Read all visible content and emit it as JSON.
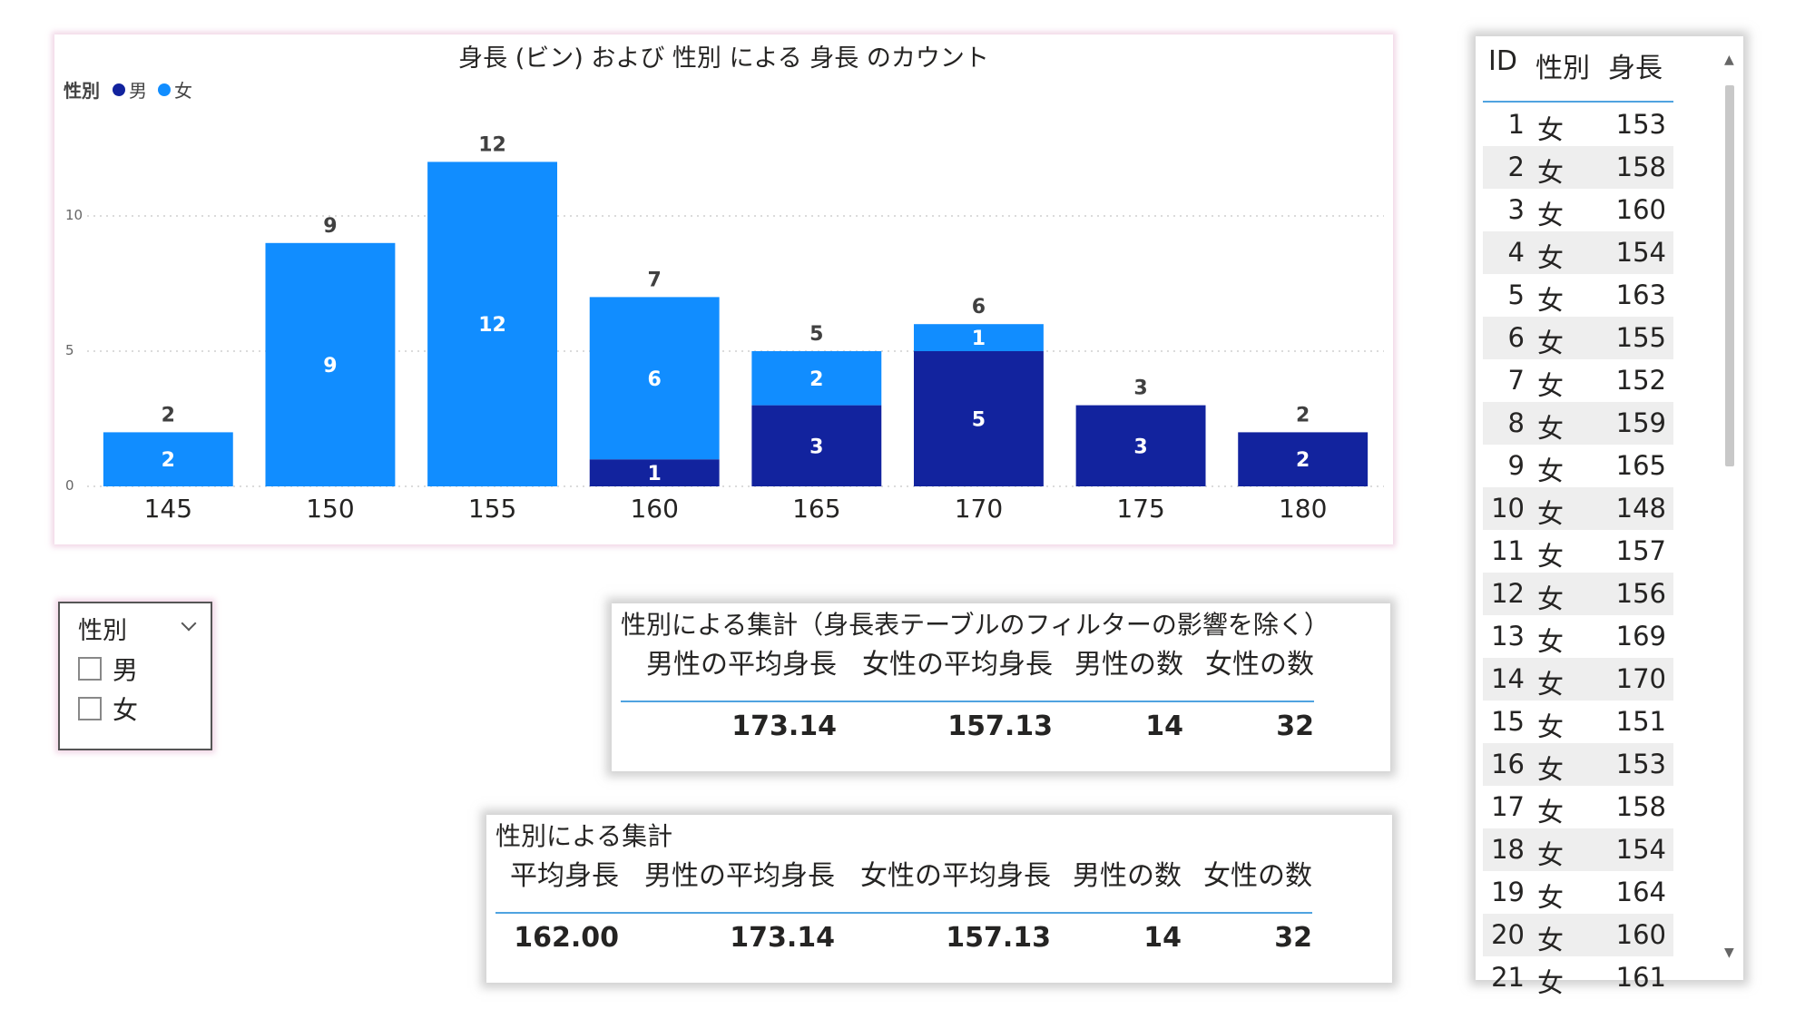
{
  "chart_data": {
    "type": "bar",
    "stacked": true,
    "title": "身長 (ビン) および 性別 による 身長 のカウント",
    "legend": {
      "title": "性別",
      "position": "top-left"
    },
    "categories": [
      "145",
      "150",
      "155",
      "160",
      "165",
      "170",
      "175",
      "180"
    ],
    "series": [
      {
        "name": "男",
        "color": "#12239e",
        "values": [
          0,
          0,
          0,
          1,
          3,
          5,
          3,
          2
        ]
      },
      {
        "name": "女",
        "color": "#118dff",
        "values": [
          2,
          9,
          12,
          6,
          2,
          1,
          0,
          0
        ]
      }
    ],
    "totals": [
      2,
      9,
      12,
      7,
      5,
      6,
      3,
      2
    ],
    "yticks": [
      "0",
      "5",
      "10"
    ],
    "ylim": [
      0,
      13.3
    ],
    "grid": true
  },
  "slicer": {
    "title": "性別",
    "options": [
      "男",
      "女"
    ]
  },
  "card1": {
    "title": "性別による集計（身長表テーブルのフィルターの影響を除く）",
    "headers": [
      "男性の平均身長",
      "女性の平均身長",
      "男性の数",
      "女性の数"
    ],
    "values": [
      "173.14",
      "157.13",
      "14",
      "32"
    ]
  },
  "card2": {
    "title": "性別による集計",
    "headers": [
      "平均身長",
      "男性の平均身長",
      "女性の平均身長",
      "男性の数",
      "女性の数"
    ],
    "values": [
      "162.00",
      "173.14",
      "157.13",
      "14",
      "32"
    ]
  },
  "table": {
    "headers": [
      "ID",
      "性別",
      "身長"
    ],
    "rows": [
      [
        "1",
        "女",
        "153"
      ],
      [
        "2",
        "女",
        "158"
      ],
      [
        "3",
        "女",
        "160"
      ],
      [
        "4",
        "女",
        "154"
      ],
      [
        "5",
        "女",
        "163"
      ],
      [
        "6",
        "女",
        "155"
      ],
      [
        "7",
        "女",
        "152"
      ],
      [
        "8",
        "女",
        "159"
      ],
      [
        "9",
        "女",
        "165"
      ],
      [
        "10",
        "女",
        "148"
      ],
      [
        "11",
        "女",
        "157"
      ],
      [
        "12",
        "女",
        "156"
      ],
      [
        "13",
        "女",
        "169"
      ],
      [
        "14",
        "女",
        "170"
      ],
      [
        "15",
        "女",
        "151"
      ],
      [
        "16",
        "女",
        "153"
      ],
      [
        "17",
        "女",
        "158"
      ],
      [
        "18",
        "女",
        "154"
      ],
      [
        "19",
        "女",
        "164"
      ],
      [
        "20",
        "女",
        "160"
      ],
      [
        "21",
        "女",
        "161"
      ]
    ]
  }
}
